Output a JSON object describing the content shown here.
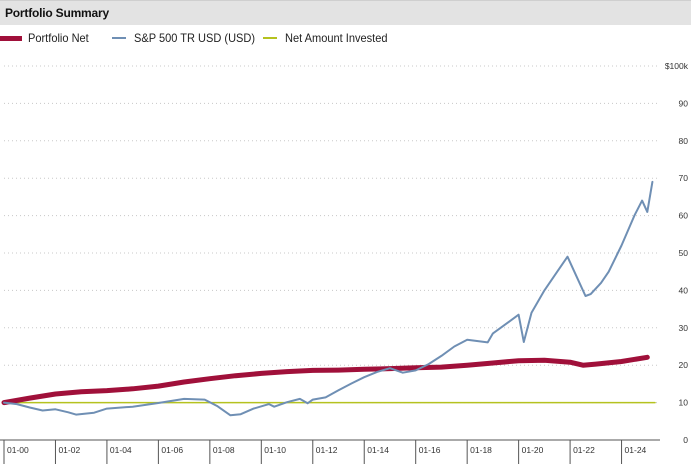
{
  "header": {
    "title": "Portfolio Summary"
  },
  "legend": [
    {
      "label": "Portfolio Net",
      "color": "#a0103a"
    },
    {
      "label": "S&P 500 TR USD (USD)",
      "color": "#6f8fb4"
    },
    {
      "label": "Net Amount Invested",
      "color": "#b5c21f"
    }
  ],
  "chart_data": {
    "type": "line",
    "y_unit_label": "$100k",
    "ylim": [
      0,
      100
    ],
    "yticks": [
      0,
      10,
      20,
      30,
      40,
      50,
      60,
      70,
      80,
      90,
      100
    ],
    "ytick_labels": [
      "0",
      "10",
      "20",
      "30",
      "40",
      "50",
      "60",
      "70",
      "80",
      "90",
      "$100k"
    ],
    "xlim": [
      2000,
      2025.3
    ],
    "xticks": [
      2000,
      2002,
      2004,
      2006,
      2008,
      2010,
      2012,
      2014,
      2016,
      2018,
      2020,
      2022,
      2024
    ],
    "xtick_labels": [
      "01-00",
      "01-02",
      "01-04",
      "01-06",
      "01-08",
      "01-10",
      "01-12",
      "01-14",
      "01-16",
      "01-18",
      "01-20",
      "01-22",
      "01-24"
    ],
    "grid": "horizontal dotted",
    "series": [
      {
        "name": "Portfolio Net",
        "color": "#a0103a",
        "x": [
          2000,
          2001,
          2002,
          2003,
          2004,
          2005,
          2006,
          2007,
          2008,
          2009,
          2010,
          2011,
          2012,
          2013,
          2014,
          2015,
          2016,
          2017,
          2018,
          2019,
          2020,
          2021,
          2022,
          2022.5,
          2023,
          2024,
          2025
        ],
        "y": [
          10.0,
          11.2,
          12.3,
          12.9,
          13.2,
          13.7,
          14.4,
          15.5,
          16.4,
          17.2,
          17.8,
          18.3,
          18.6,
          18.7,
          18.9,
          19.1,
          19.3,
          19.5,
          20.0,
          20.6,
          21.2,
          21.3,
          20.8,
          20.0,
          20.3,
          21.0,
          22.1
        ]
      },
      {
        "name": "S&P 500 TR USD (USD)",
        "color": "#6f8fb4",
        "x": [
          2000,
          2000.5,
          2001,
          2001.5,
          2002,
          2002.5,
          2002.8,
          2003.5,
          2004,
          2005,
          2006,
          2007,
          2007.8,
          2008.3,
          2008.8,
          2009.2,
          2009.7,
          2010.3,
          2010.5,
          2011,
          2011.5,
          2011.8,
          2012,
          2012.5,
          2013,
          2013.5,
          2014,
          2014.5,
          2015,
          2015.5,
          2016,
          2016.5,
          2017,
          2017.5,
          2018,
          2018.8,
          2019,
          2019.5,
          2020,
          2020.2,
          2020.5,
          2021,
          2021.5,
          2021.9,
          2022.3,
          2022.6,
          2022.8,
          2023.2,
          2023.5,
          2024,
          2024.5,
          2024.8,
          2025,
          2025.2
        ],
        "y": [
          10.0,
          9.6,
          8.7,
          7.9,
          8.2,
          7.4,
          6.8,
          7.3,
          8.4,
          8.9,
          9.9,
          11.0,
          10.8,
          9.0,
          6.6,
          6.9,
          8.4,
          9.6,
          8.9,
          10.1,
          11.0,
          9.8,
          10.8,
          11.4,
          13.3,
          15.1,
          16.8,
          18.2,
          19.2,
          18.0,
          18.6,
          20.3,
          22.5,
          25.0,
          26.8,
          26.1,
          28.5,
          31.0,
          33.5,
          26.2,
          34.0,
          40.0,
          45.0,
          49.0,
          43.0,
          38.5,
          39.0,
          42.0,
          45.0,
          52.0,
          60.0,
          64.0,
          61.0,
          69.0
        ]
      },
      {
        "name": "Net Amount Invested",
        "color": "#b5c21f",
        "x": [
          2000,
          2025.3
        ],
        "y": [
          10,
          10
        ]
      }
    ]
  }
}
